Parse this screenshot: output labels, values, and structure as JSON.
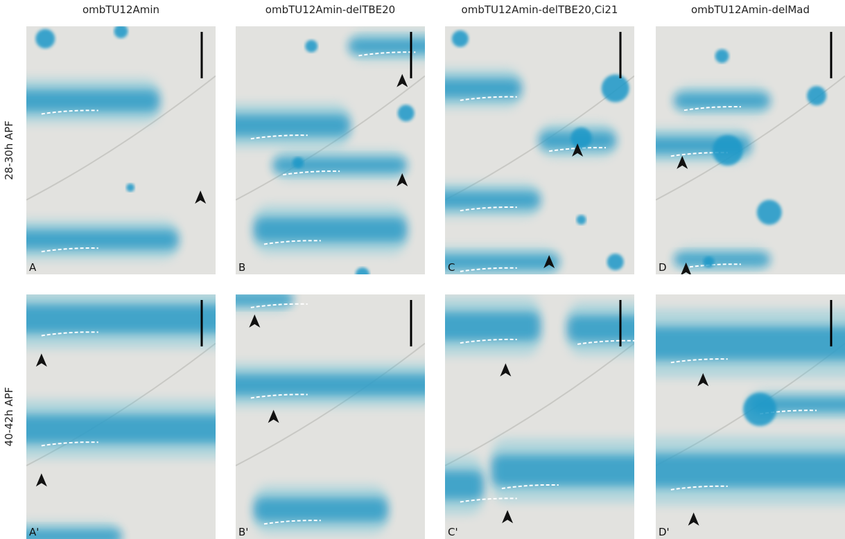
{
  "columns": [
    "ombTU12Amin",
    "ombTU12Amin-delTBE20",
    "ombTU12Amin-delTBE20,Ci21",
    "ombTU12Amin-delMad"
  ],
  "rows": [
    "28-30h APF",
    "40-42h APF"
  ],
  "panels": [
    [
      "A",
      "B",
      "C",
      "D"
    ],
    [
      "A'",
      "B'",
      "C'",
      "D'"
    ]
  ]
}
